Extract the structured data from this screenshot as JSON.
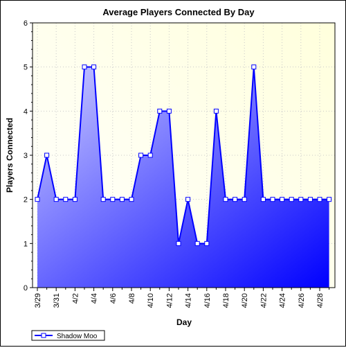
{
  "chart_data": {
    "type": "area",
    "title": "Average Players Connected By Day",
    "xlabel": "Day",
    "ylabel": "Players Connected",
    "ylim": [
      0,
      6
    ],
    "yticks": [
      0,
      1,
      2,
      3,
      4,
      5,
      6
    ],
    "grid": true,
    "legend_position": "bottom-left",
    "categories": [
      "3/29",
      "3/30",
      "3/31",
      "4/1",
      "4/2",
      "4/3",
      "4/4",
      "4/5",
      "4/6",
      "4/7",
      "4/8",
      "4/9",
      "4/10",
      "4/11",
      "4/12",
      "4/13",
      "4/14",
      "4/15",
      "4/16",
      "4/17",
      "4/18",
      "4/19",
      "4/20",
      "4/21",
      "4/22",
      "4/23",
      "4/24",
      "4/25",
      "4/26",
      "4/27",
      "4/28",
      "4/29"
    ],
    "tick_labels": [
      "3/29",
      "3/31",
      "4/2",
      "4/4",
      "4/6",
      "4/8",
      "4/10",
      "4/12",
      "4/14",
      "4/16",
      "4/18",
      "4/20",
      "4/22",
      "4/24",
      "4/26",
      "4/28"
    ],
    "series": [
      {
        "name": "Shadow Moo",
        "values": [
          2,
          3,
          2,
          2,
          2,
          5,
          5,
          2,
          2,
          2,
          2,
          3,
          3,
          4,
          4,
          1,
          2,
          1,
          1,
          4,
          2,
          2,
          2,
          5,
          2,
          2,
          2,
          2,
          2,
          2,
          2,
          2
        ]
      }
    ],
    "colors": {
      "plot_background_top_right": "#ffffdc",
      "plot_background_bottom_left": "#ffffff",
      "fill_start": "#ccccff",
      "fill_end": "#0000ff",
      "line": "#0000ff",
      "marker_fill": "#ffffff",
      "grid": "#c8c8c8"
    }
  }
}
